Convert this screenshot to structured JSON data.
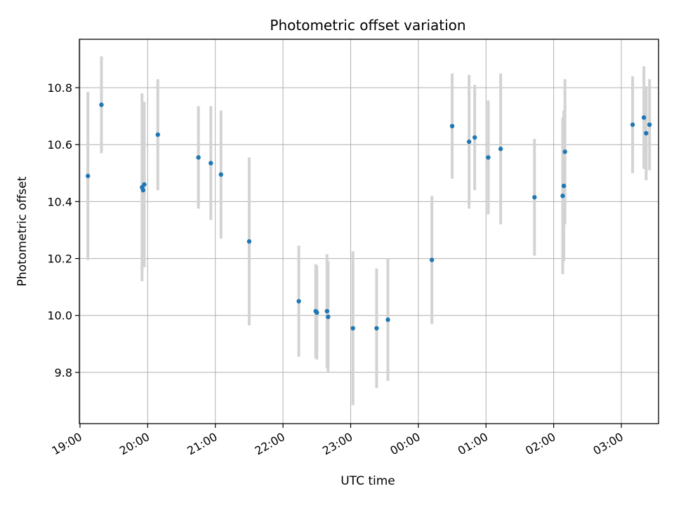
{
  "chart_data": {
    "type": "scatter",
    "title": "Photometric offset variation",
    "xlabel": "UTC time",
    "ylabel": "Photometric offset",
    "x_ticks": [
      "19:00",
      "20:00",
      "21:00",
      "22:00",
      "23:00",
      "00:00",
      "01:00",
      "02:00",
      "03:00"
    ],
    "xlim_hours": [
      18.99,
      27.55
    ],
    "ylim": [
      9.62,
      10.97
    ],
    "y_ticks": [
      "9.8",
      "10.0",
      "10.2",
      "10.4",
      "10.6",
      "10.8"
    ],
    "grid": true,
    "colors": {
      "point": "#1f77b4",
      "errorbar": "#d3d3d3",
      "grid": "#b0b0b0"
    },
    "points": [
      {
        "t": "19:07",
        "y": 10.49,
        "err": 0.295
      },
      {
        "t": "19:19",
        "y": 10.74,
        "err": 0.17
      },
      {
        "t": "19:55",
        "y": 10.45,
        "err": 0.33
      },
      {
        "t": "19:56",
        "y": 10.44,
        "err": 0.27
      },
      {
        "t": "19:57",
        "y": 10.46,
        "err": 0.29
      },
      {
        "t": "20:09",
        "y": 10.635,
        "err": 0.195
      },
      {
        "t": "20:45",
        "y": 10.555,
        "err": 0.18
      },
      {
        "t": "20:56",
        "y": 10.535,
        "err": 0.2
      },
      {
        "t": "21:05",
        "y": 10.495,
        "err": 0.225
      },
      {
        "t": "21:30",
        "y": 10.26,
        "err": 0.295
      },
      {
        "t": "22:14",
        "y": 10.05,
        "err": 0.195
      },
      {
        "t": "22:29",
        "y": 10.015,
        "err": 0.165
      },
      {
        "t": "22:30",
        "y": 10.01,
        "err": 0.165
      },
      {
        "t": "22:39",
        "y": 10.015,
        "err": 0.2
      },
      {
        "t": "22:40",
        "y": 9.995,
        "err": 0.195
      },
      {
        "t": "23:02",
        "y": 9.955,
        "err": 0.27
      },
      {
        "t": "23:23",
        "y": 9.955,
        "err": 0.21
      },
      {
        "t": "23:33",
        "y": 9.985,
        "err": 0.215
      },
      {
        "t": "00:12",
        "y": 10.195,
        "err": 0.225
      },
      {
        "t": "00:30",
        "y": 10.665,
        "err": 0.185
      },
      {
        "t": "00:45",
        "y": 10.61,
        "err": 0.235
      },
      {
        "t": "00:50",
        "y": 10.625,
        "err": 0.185
      },
      {
        "t": "01:02",
        "y": 10.555,
        "err": 0.2
      },
      {
        "t": "01:13",
        "y": 10.585,
        "err": 0.265
      },
      {
        "t": "01:43",
        "y": 10.415,
        "err": 0.205
      },
      {
        "t": "02:08",
        "y": 10.42,
        "err": 0.275
      },
      {
        "t": "02:09",
        "y": 10.455,
        "err": 0.265
      },
      {
        "t": "02:10",
        "y": 10.575,
        "err": 0.255
      },
      {
        "t": "03:10",
        "y": 10.67,
        "err": 0.17
      },
      {
        "t": "03:20",
        "y": 10.695,
        "err": 0.18
      },
      {
        "t": "03:22",
        "y": 10.64,
        "err": 0.165
      },
      {
        "t": "03:25",
        "y": 10.67,
        "err": 0.16
      }
    ]
  }
}
